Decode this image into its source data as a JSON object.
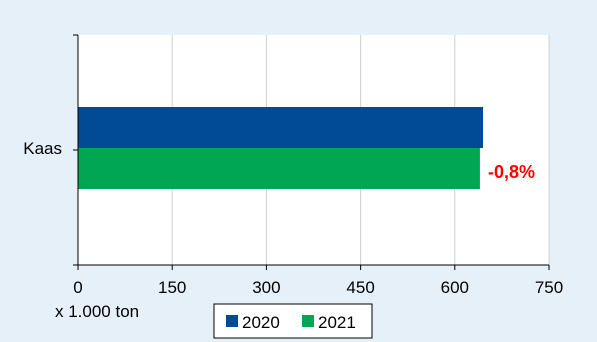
{
  "chart_data": {
    "type": "bar",
    "orientation": "horizontal",
    "categories": [
      "Kaas"
    ],
    "series": [
      {
        "name": "2020",
        "values": [
          645
        ]
      },
      {
        "name": "2021",
        "values": [
          640
        ]
      }
    ],
    "xlabel": "x 1.000 ton",
    "xlim": [
      0,
      750
    ],
    "xticks": [
      0,
      150,
      300,
      450,
      600,
      750
    ],
    "xtick_labels": [
      "0",
      "150",
      "300",
      "450",
      "600",
      "750"
    ],
    "grid": "vertical",
    "legend_position": "bottom-center",
    "annotations": [
      {
        "category": "Kaas",
        "text": "-0,8%",
        "color": "#ff0000"
      }
    ],
    "colors": {
      "series_2020": "#004b93",
      "series_2021": "#00a651",
      "plot_background": "#ffffff",
      "page_background": "#e6f0f9",
      "grid": "#d0d0d0",
      "axis": "#000000"
    }
  }
}
